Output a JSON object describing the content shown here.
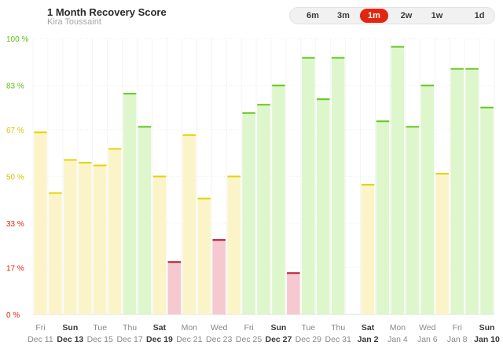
{
  "header": {
    "title": "1 Month Recovery Score",
    "subtitle": "Kira Toussaint"
  },
  "range_selector": {
    "options": [
      "6m",
      "3m",
      "1m",
      "2w",
      "1w",
      "1d"
    ],
    "selected": "1m"
  },
  "colors": {
    "red_fill": "#f6c8cf",
    "red_top": "#b0112a",
    "yellow_fill": "#fbf4c9",
    "yellow_top": "#e2d506",
    "green_fill": "#ddf6cc",
    "green_top": "#64c61c",
    "grid": "#eeeeee"
  },
  "chart_data": {
    "type": "bar",
    "title": "1 Month Recovery Score",
    "xlabel": "",
    "ylabel": "",
    "ylim": [
      0,
      100
    ],
    "y_ticks": [
      {
        "value": 0,
        "label": "0 %",
        "color": "#e2260f"
      },
      {
        "value": 17,
        "label": "17 %",
        "color": "#e2260f"
      },
      {
        "value": 33,
        "label": "33 %",
        "color": "#e2260f"
      },
      {
        "value": 50,
        "label": "50 %",
        "color": "#d6c600"
      },
      {
        "value": 67,
        "label": "67 %",
        "color": "#d6c600"
      },
      {
        "value": 83,
        "label": "83 %",
        "color": "#5cbf17"
      },
      {
        "value": 100,
        "label": "100 %",
        "color": "#5cbf17"
      }
    ],
    "categories": [
      "Dec 11",
      "Dec 12",
      "Dec 13",
      "Dec 14",
      "Dec 15",
      "Dec 16",
      "Dec 17",
      "Dec 18",
      "Dec 19",
      "Dec 20",
      "Dec 21",
      "Dec 22",
      "Dec 23",
      "Dec 24",
      "Dec 25",
      "Dec 26",
      "Dec 27",
      "Dec 28",
      "Dec 29",
      "Dec 30",
      "Dec 31",
      "Jan 1",
      "Jan 2",
      "Jan 3",
      "Jan 4",
      "Jan 5",
      "Jan 6",
      "Jan 7",
      "Jan 8",
      "Jan 9",
      "Jan 10"
    ],
    "values": [
      66,
      44,
      56,
      55,
      54,
      60,
      80,
      68,
      50,
      19,
      65,
      42,
      27,
      50,
      73,
      76,
      83,
      15,
      93,
      78,
      93,
      null,
      47,
      70,
      97,
      68,
      83,
      51,
      89,
      89,
      75
    ],
    "x_tick_labels": [
      {
        "index": 0,
        "day": "Fri",
        "date": "Dec 11",
        "bold": false
      },
      {
        "index": 2,
        "day": "Sun",
        "date": "Dec 13",
        "bold": true
      },
      {
        "index": 4,
        "day": "Tue",
        "date": "Dec 15",
        "bold": false
      },
      {
        "index": 6,
        "day": "Thu",
        "date": "Dec 17",
        "bold": false
      },
      {
        "index": 8,
        "day": "Sat",
        "date": "Dec 19",
        "bold": true
      },
      {
        "index": 10,
        "day": "Mon",
        "date": "Dec 21",
        "bold": false
      },
      {
        "index": 12,
        "day": "Wed",
        "date": "Dec 23",
        "bold": false
      },
      {
        "index": 14,
        "day": "Fri",
        "date": "Dec 25",
        "bold": false
      },
      {
        "index": 16,
        "day": "Sun",
        "date": "Dec 27",
        "bold": true
      },
      {
        "index": 18,
        "day": "Tue",
        "date": "Dec 29",
        "bold": false
      },
      {
        "index": 20,
        "day": "Thu",
        "date": "Dec 31",
        "bold": false
      },
      {
        "index": 22,
        "day": "Sat",
        "date": "Jan 2",
        "bold": true
      },
      {
        "index": 24,
        "day": "Mon",
        "date": "Jan 4",
        "bold": false
      },
      {
        "index": 26,
        "day": "Wed",
        "date": "Jan 6",
        "bold": false
      },
      {
        "index": 28,
        "day": "Fri",
        "date": "Jan 8",
        "bold": false
      },
      {
        "index": 30,
        "day": "Sun",
        "date": "Jan 10",
        "bold": true
      }
    ]
  }
}
